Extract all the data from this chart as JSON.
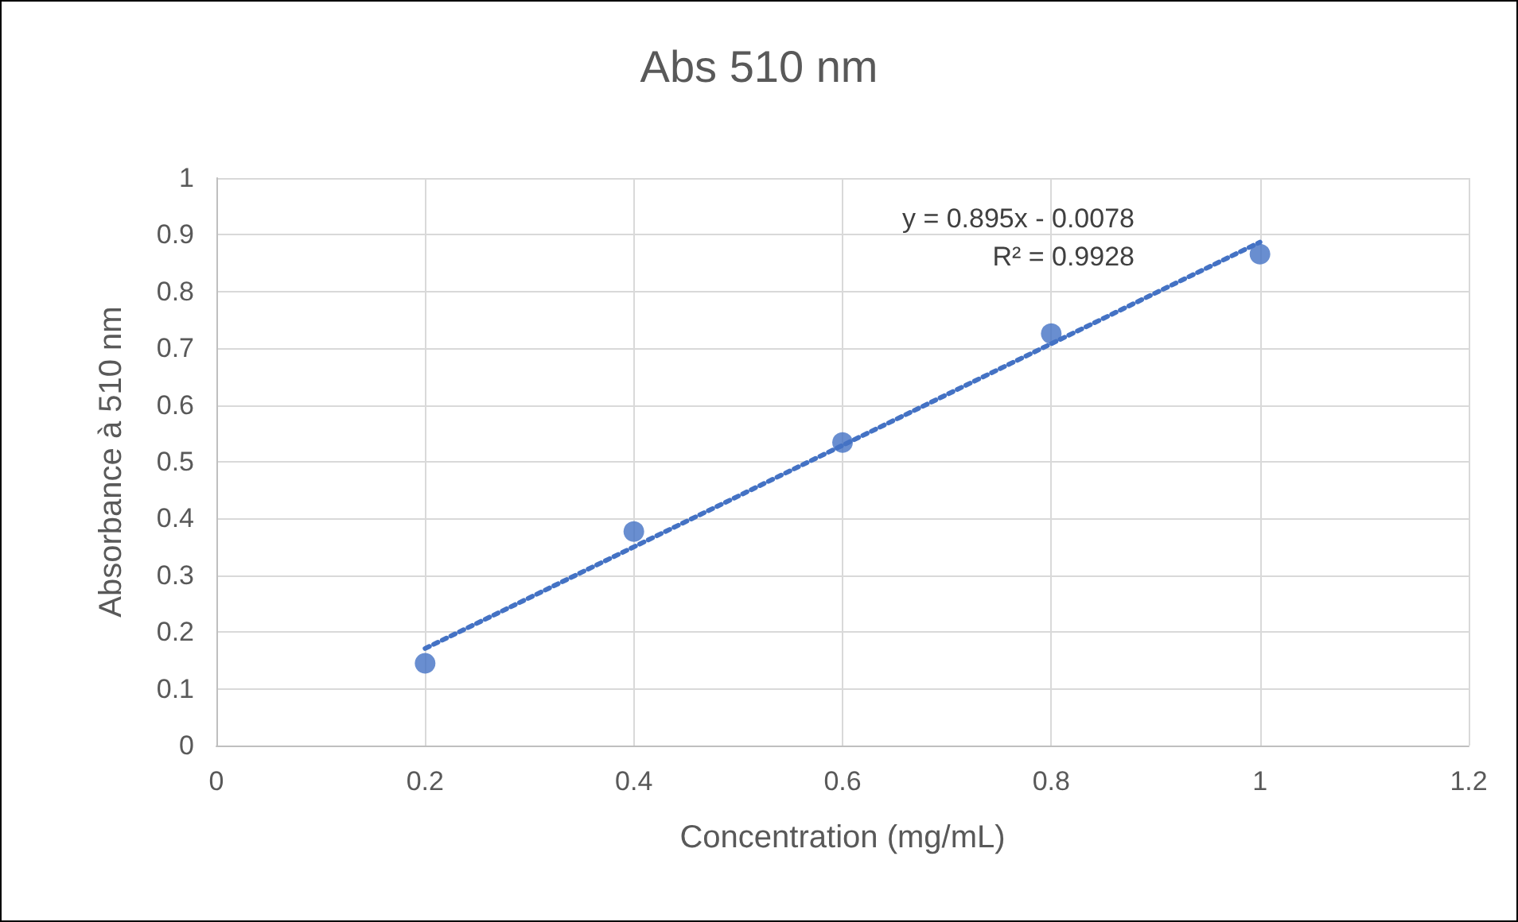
{
  "chart_data": {
    "type": "scatter",
    "title": "Abs 510 nm",
    "xlabel": "Concentration (mg/mL)",
    "ylabel": "Absorbance à 510 nm",
    "x": [
      0.2,
      0.4,
      0.6,
      0.8,
      1
    ],
    "series": [
      {
        "color": "#4472c4",
        "values": [
          0.145,
          0.377,
          0.534,
          0.726,
          0.866
        ]
      },
      {
        "type": "line",
        "color": "#4472c4",
        "x": [
          0.2,
          1
        ],
        "values": [
          0.171,
          0.887
        ],
        "marker": "none",
        "line_style": "dotted"
      }
    ],
    "annotations": [
      "y = 0.895x - 0.0078",
      "R² = 0.9928"
    ],
    "xlim": [
      0,
      1.2
    ],
    "xticks": [
      0,
      0.2,
      0.4,
      0.6,
      0.8,
      1,
      1.2
    ],
    "ylim": [
      0,
      1
    ],
    "yticks": [
      0,
      0.1,
      0.2,
      0.3,
      0.4,
      0.5,
      0.6,
      0.7,
      0.8,
      0.9,
      1
    ],
    "grid": true,
    "marker": "circle"
  }
}
